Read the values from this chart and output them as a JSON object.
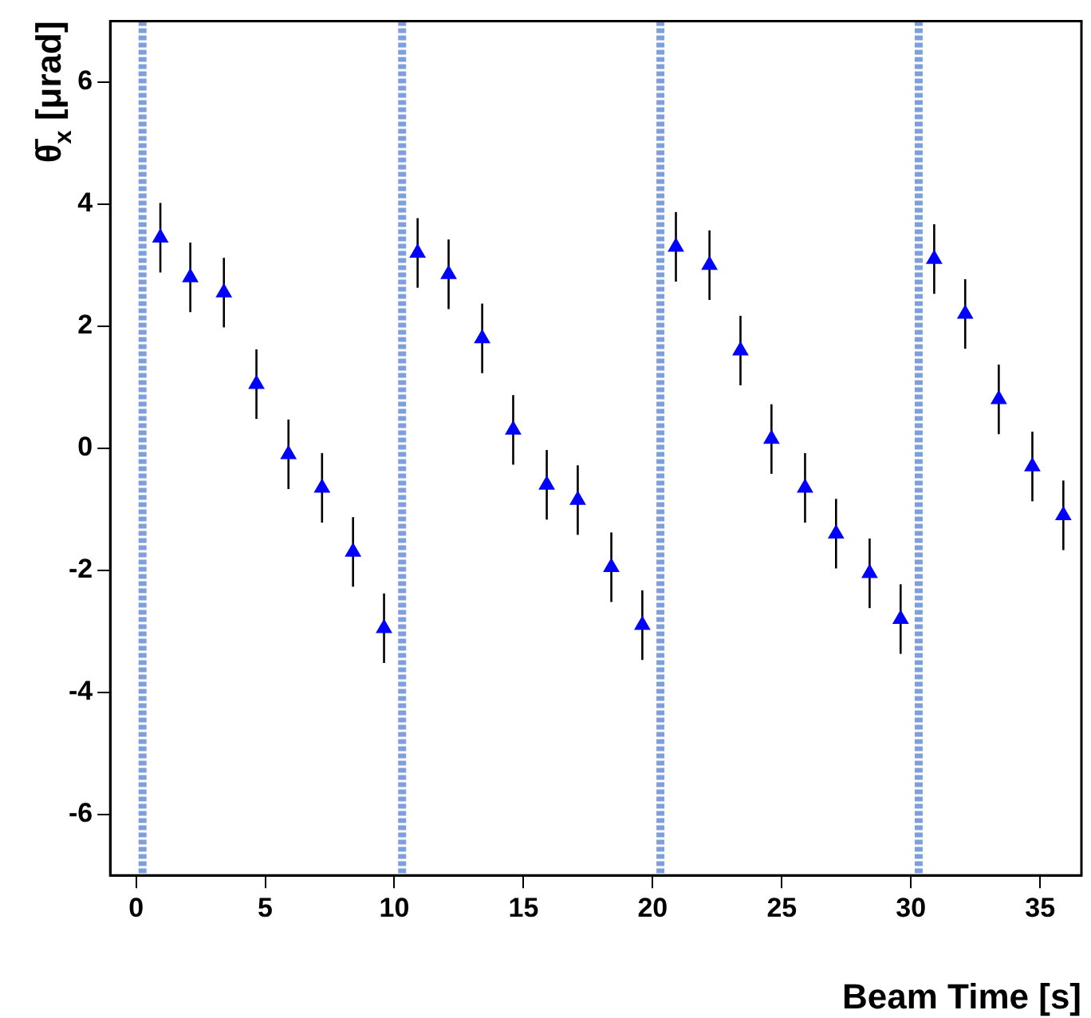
{
  "chart_data": {
    "type": "scatter",
    "xlabel": "Beam Time [s]",
    "ylabel": "θ̄$_{x}$ [μrad]",
    "x": [
      0.94,
      2.1,
      3.4,
      4.66,
      5.9,
      7.2,
      8.4,
      9.6,
      10.9,
      12.1,
      13.4,
      14.6,
      15.9,
      17.1,
      18.4,
      19.6,
      20.9,
      22.2,
      23.4,
      24.6,
      25.9,
      27.1,
      28.4,
      29.6,
      30.9,
      32.1,
      33.4,
      34.7,
      35.9
    ],
    "values": [
      3.45,
      2.8,
      2.55,
      1.05,
      -0.1,
      -0.65,
      -1.7,
      -2.95,
      3.2,
      2.85,
      1.8,
      0.3,
      -0.6,
      -0.85,
      -1.95,
      -2.9,
      3.3,
      3.0,
      1.6,
      0.15,
      -0.65,
      -1.4,
      -2.05,
      -2.8,
      3.1,
      2.2,
      0.8,
      -0.3,
      -1.1
    ],
    "errors": [
      0.57,
      0.57,
      0.57,
      0.57,
      0.57,
      0.57,
      0.57,
      0.57,
      0.57,
      0.57,
      0.57,
      0.57,
      0.57,
      0.57,
      0.57,
      0.57,
      0.57,
      0.57,
      0.57,
      0.57,
      0.57,
      0.57,
      0.57,
      0.57,
      0.57,
      0.57,
      0.57,
      0.57,
      0.57
    ],
    "color": "#0000ff",
    "marker": "triangle",
    "xlim": [
      -1,
      36.6
    ],
    "xticks": [
      0,
      5,
      10,
      15,
      20,
      25,
      30,
      35
    ],
    "ylim": [
      -7,
      7
    ],
    "yticks": [
      -6,
      -4,
      -2,
      0,
      2,
      4,
      6
    ],
    "grid": false,
    "legend": false,
    "ref_lines": [
      {
        "axis": "x",
        "value": 0.25,
        "color": "#7f9fdc",
        "line_style": "dashed"
      },
      {
        "axis": "x",
        "value": 10.3,
        "color": "#7f9fdc",
        "line_style": "dashed"
      },
      {
        "axis": "x",
        "value": 20.3,
        "color": "#7f9fdc",
        "line_style": "dashed"
      },
      {
        "axis": "x",
        "value": 30.3,
        "color": "#7f9fdc",
        "line_style": "dashed"
      }
    ]
  }
}
